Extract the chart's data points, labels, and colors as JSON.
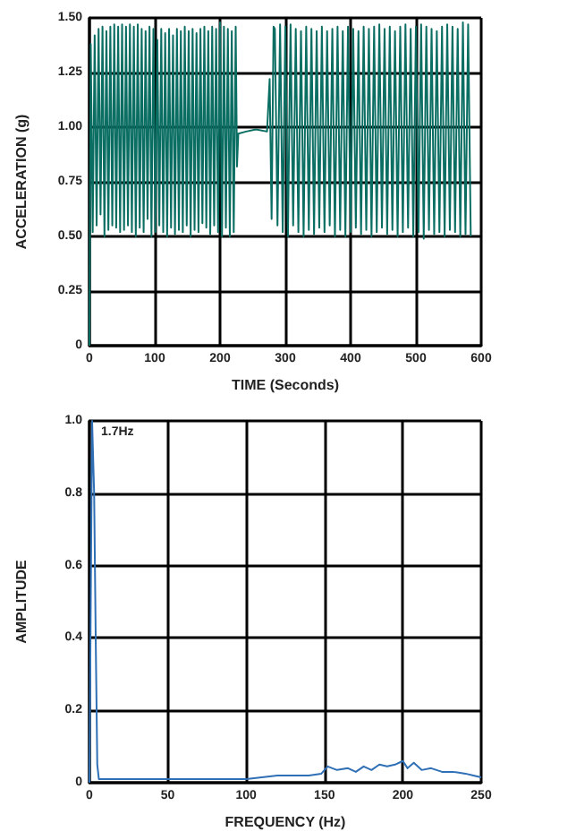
{
  "chart_data": [
    {
      "type": "line",
      "xlabel": "TIME (Seconds)",
      "ylabel": "ACCELERATION (g)",
      "xlim": [
        0,
        600
      ],
      "ylim": [
        0,
        1.5
      ],
      "xticks": [
        0,
        100,
        200,
        300,
        400,
        500,
        600
      ],
      "yticks": [
        0,
        0.25,
        {
          "value": 0.5,
          "label": "0.50"
        },
        0.75,
        {
          "value": 1,
          "label": "1.00"
        },
        1.25,
        {
          "value": 1.5,
          "label": "1.50"
        }
      ],
      "grid": true,
      "marker": "none",
      "line_style": "solid",
      "series": [
        {
          "color": "#0b6e63",
          "x": [
            0,
            2,
            5,
            8,
            11,
            14,
            17,
            20,
            23,
            26,
            29,
            32,
            35,
            38,
            41,
            44,
            47,
            50,
            53,
            56,
            59,
            62,
            65,
            68,
            71,
            74,
            77,
            80,
            83,
            86,
            89,
            92,
            95,
            98,
            101,
            104,
            107,
            110,
            113,
            116,
            119,
            122,
            125,
            128,
            131,
            134,
            137,
            140,
            143,
            146,
            149,
            152,
            155,
            158,
            161,
            164,
            167,
            170,
            173,
            176,
            179,
            182,
            185,
            188,
            191,
            194,
            197,
            200,
            203,
            206,
            209,
            212,
            215,
            218,
            221,
            224,
            226,
            228,
            240,
            255,
            272,
            276,
            279,
            282,
            284,
            288,
            292,
            296,
            300,
            304,
            308,
            312,
            316,
            320,
            324,
            328,
            332,
            336,
            340,
            344,
            348,
            352,
            356,
            360,
            364,
            368,
            372,
            376,
            380,
            384,
            388,
            392,
            396,
            400,
            404,
            408,
            412,
            416,
            420,
            424,
            428,
            432,
            436,
            440,
            444,
            448,
            452,
            456,
            460,
            464,
            468,
            472,
            476,
            480,
            484,
            488,
            492,
            496,
            500,
            504,
            508,
            512,
            516,
            520,
            524,
            528,
            532,
            536,
            540,
            544,
            548,
            552,
            556,
            560,
            564,
            568,
            572,
            576,
            580,
            584
          ],
          "values": [
            0,
            1.38,
            0.52,
            1.42,
            0.55,
            1.45,
            0.6,
            1.46,
            0.5,
            1.44,
            0.53,
            1.46,
            0.55,
            1.47,
            0.54,
            1.46,
            0.52,
            1.47,
            0.53,
            1.46,
            0.55,
            1.47,
            0.52,
            1.46,
            0.5,
            1.47,
            0.54,
            1.45,
            0.52,
            1.44,
            0.58,
            1.46,
            0.5,
            1.45,
            0.52,
            1.4,
            0.55,
            1.45,
            0.52,
            1.43,
            0.5,
            1.45,
            0.54,
            1.42,
            0.51,
            1.45,
            0.53,
            1.44,
            0.52,
            1.46,
            0.55,
            1.44,
            0.5,
            1.45,
            0.53,
            1.43,
            0.52,
            1.45,
            0.56,
            1.46,
            0.54,
            1.44,
            0.51,
            1.46,
            0.55,
            1.45,
            0.52,
            1.48,
            0.5,
            1.46,
            0.54,
            1.45,
            0.5,
            1.44,
            0.52,
            1.46,
            0.82,
            0.97,
            0.98,
            0.99,
            0.98,
            1.22,
            0.58,
            1.46,
            1.45,
            0.55,
            1.47,
            0.52,
            1.46,
            0.5,
            1.47,
            0.55,
            1.45,
            0.52,
            1.44,
            0.5,
            1.46,
            0.53,
            1.45,
            0.51,
            1.44,
            0.54,
            1.46,
            0.52,
            1.44,
            0.55,
            1.45,
            0.5,
            1.46,
            0.53,
            1.44,
            0.5,
            1.46,
            0.52,
            1.45,
            0.54,
            1.44,
            0.51,
            1.46,
            0.53,
            1.45,
            0.5,
            1.46,
            0.52,
            1.47,
            0.54,
            1.45,
            0.51,
            1.46,
            0.53,
            1.44,
            0.5,
            1.46,
            0.52,
            1.47,
            0.54,
            1.45,
            0.5,
            1.46,
            0.52,
            1.47,
            0.49,
            1.46,
            0.53,
            1.45,
            0.51,
            1.44,
            0.52,
            1.46,
            0.5,
            1.47,
            0.53,
            1.46,
            0.52,
            1.45,
            0.5,
            1.48,
            0.51,
            1.47,
            0.5
          ]
        }
      ]
    },
    {
      "type": "line",
      "xlabel": "FREQUENCY (Hz)",
      "ylabel": "AMPLITUDE",
      "xlim": [
        0,
        250
      ],
      "ylim": [
        0,
        1
      ],
      "xticks": [
        0,
        50,
        100,
        150,
        200,
        250
      ],
      "yticks": [
        0,
        0.2,
        0.4,
        0.6,
        0.8,
        {
          "value": 1,
          "label": "1.0"
        }
      ],
      "grid": true,
      "marker": "none",
      "line_style": "solid",
      "annotations": [
        {
          "text": "1.7Hz",
          "x": 1.7,
          "y": 1.0
        }
      ],
      "series": [
        {
          "color": "#2f6fb5",
          "x": [
            0,
            1,
            1.7,
            3,
            4,
            5,
            6,
            20,
            50,
            100,
            110,
            120,
            140,
            148,
            152,
            158,
            165,
            170,
            175,
            180,
            185,
            190,
            195,
            200,
            203,
            207,
            212,
            218,
            225,
            232,
            240,
            245,
            250
          ],
          "values": [
            0,
            0.6,
            1.0,
            0.8,
            0.4,
            0.05,
            0.01,
            0.01,
            0.01,
            0.01,
            0.015,
            0.02,
            0.02,
            0.025,
            0.045,
            0.035,
            0.04,
            0.03,
            0.045,
            0.035,
            0.05,
            0.045,
            0.05,
            0.06,
            0.04,
            0.055,
            0.035,
            0.04,
            0.03,
            0.03,
            0.025,
            0.02,
            0.015
          ]
        }
      ]
    }
  ]
}
